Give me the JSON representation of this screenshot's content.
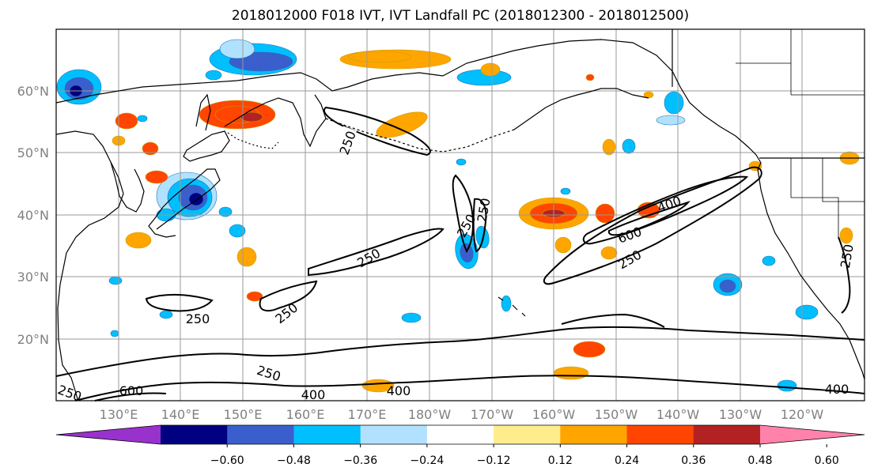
{
  "title": "2018012000 F018 IVT, IVT Landfall PC (2018012300 - 2018012500)",
  "map": {
    "lat_labels": [
      "60°N",
      "50°N",
      "40°N",
      "30°N",
      "20°N"
    ],
    "lon_labels": [
      "130°E",
      "140°E",
      "150°E",
      "160°E",
      "170°E",
      "180°W",
      "170°W",
      "160°W",
      "150°W",
      "140°W",
      "130°W",
      "120°W"
    ],
    "contour_labels": [
      "250",
      "250",
      "250",
      "250",
      "250",
      "250",
      "250",
      "400",
      "600",
      "250",
      "250",
      "600",
      "400",
      "400",
      "400",
      "250"
    ]
  },
  "colorbar": {
    "ticks": [
      "−0.60",
      "−0.48",
      "−0.36",
      "−0.24",
      "−0.12",
      "0.12",
      "0.24",
      "0.36",
      "0.48",
      "0.60"
    ],
    "colors": [
      "#9932cc",
      "#000080",
      "#3a5fcd",
      "#00bfff",
      "#b0e2ff",
      "#ffffff",
      "#ffec8b",
      "#ffa500",
      "#ff4500",
      "#b22222",
      "#ff82ab"
    ]
  },
  "colors": {
    "gridline": "#999999",
    "coastline": "#000000",
    "contour": "#000000"
  }
}
